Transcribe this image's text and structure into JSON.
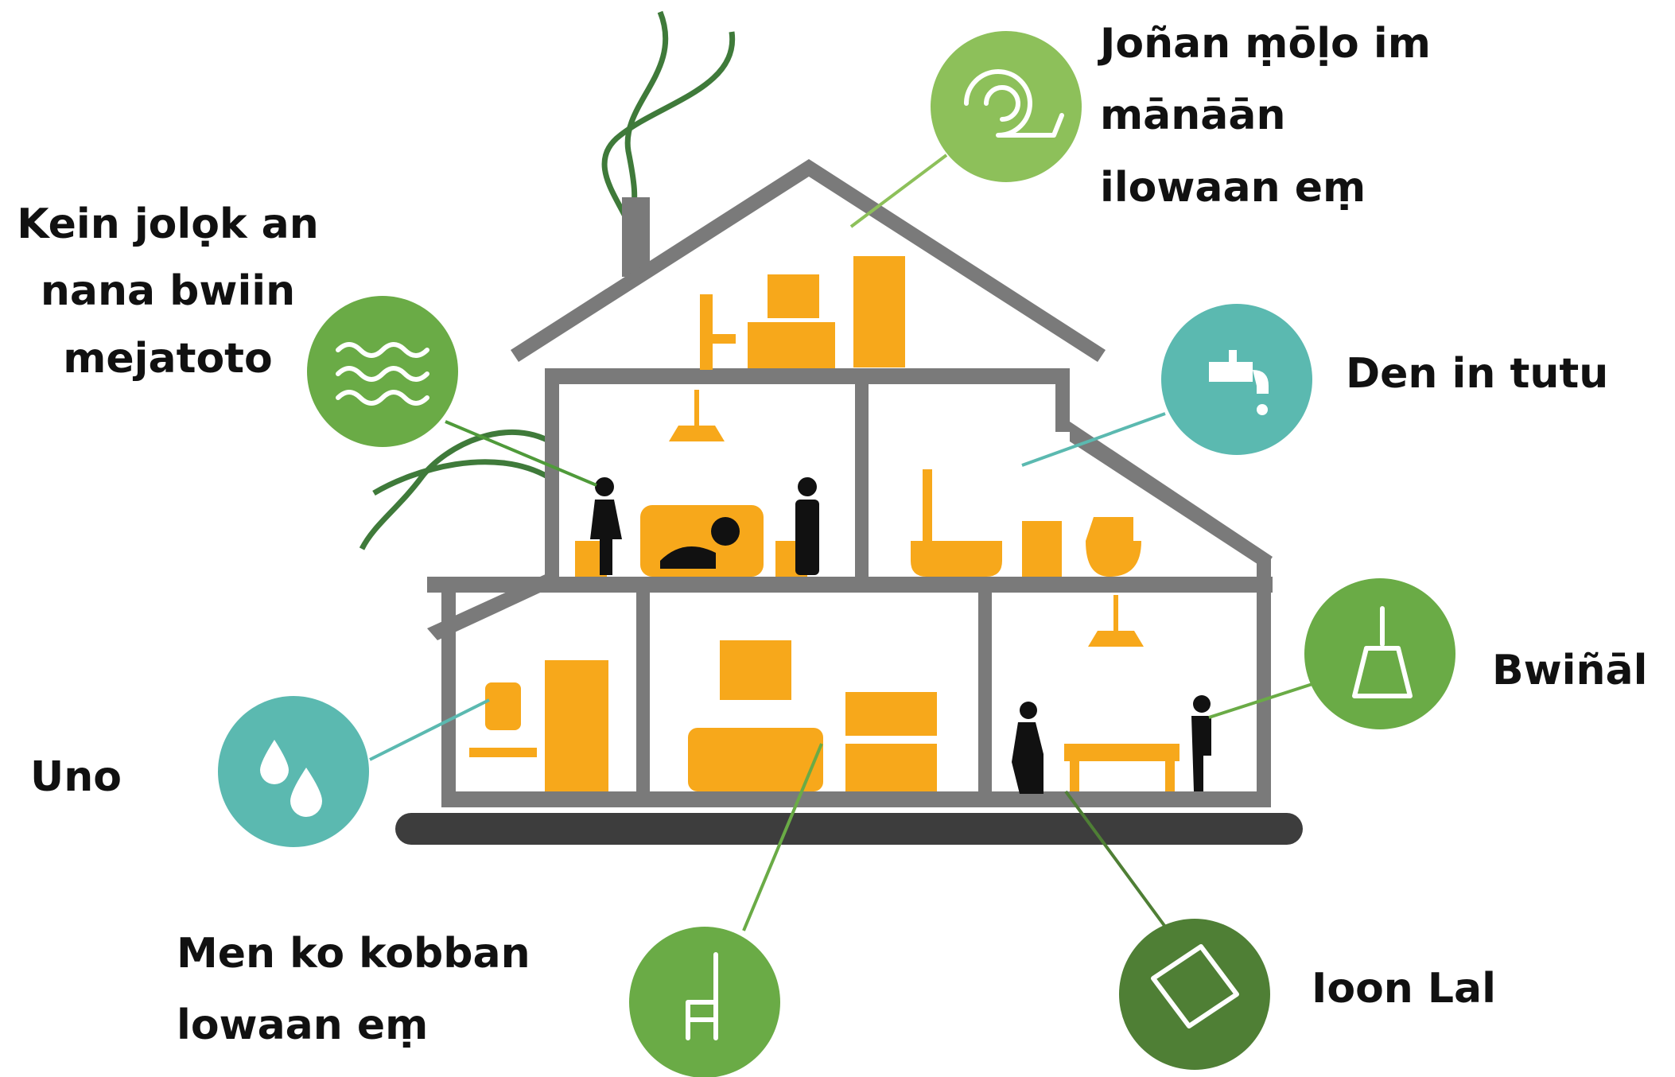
{
  "callouts": [
    {
      "lines": [
        "Joñan ṃōḷo im",
        "mānāān",
        "ilowaan eṃ"
      ]
    },
    {
      "lines": [
        "Kein jolọk an",
        "nana bwiin",
        "mejatoto"
      ]
    },
    {
      "lines": [
        "Den in tutu"
      ]
    },
    {
      "lines": [
        "Bwiñāl"
      ]
    },
    {
      "lines": [
        "Uno"
      ]
    },
    {
      "lines": [
        "Men ko kobban",
        "lowaan eṃ"
      ]
    },
    {
      "lines": [
        "Ioon Lal"
      ]
    }
  ]
}
